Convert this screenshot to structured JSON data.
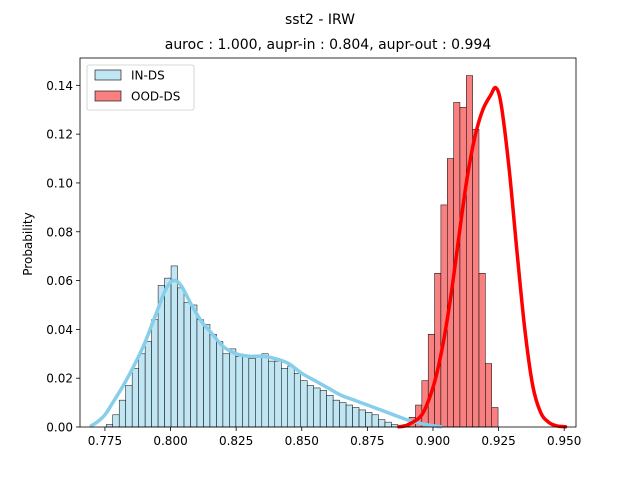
{
  "chart_data": {
    "type": "histogram",
    "title": "sst2 - IRW",
    "subtitle": "auroc : 1.000, aupr-in : 0.804, aupr-out : 0.994",
    "xlabel": "",
    "ylabel": "Probability",
    "xlim": [
      0.7655,
      0.9545
    ],
    "ylim": [
      0,
      0.1512
    ],
    "xticks": [
      {
        "value": 0.775,
        "label": "0.775"
      },
      {
        "value": 0.8,
        "label": "0.800"
      },
      {
        "value": 0.825,
        "label": "0.825"
      },
      {
        "value": 0.85,
        "label": "0.850"
      },
      {
        "value": 0.875,
        "label": "0.875"
      },
      {
        "value": 0.9,
        "label": "0.900"
      },
      {
        "value": 0.925,
        "label": "0.925"
      },
      {
        "value": 0.95,
        "label": "0.950"
      }
    ],
    "yticks": [
      {
        "value": 0.0,
        "label": "0.00"
      },
      {
        "value": 0.02,
        "label": "0.02"
      },
      {
        "value": 0.04,
        "label": "0.04"
      },
      {
        "value": 0.06,
        "label": "0.06"
      },
      {
        "value": 0.08,
        "label": "0.08"
      },
      {
        "value": 0.1,
        "label": "0.10"
      },
      {
        "value": 0.12,
        "label": "0.12"
      },
      {
        "value": 0.14,
        "label": "0.14"
      }
    ],
    "grid": false,
    "legend_position": "top-left",
    "series": [
      {
        "name": "IN-DS",
        "fill": "#c0e5f3",
        "line_color": "#87ceeb",
        "bin_start": 0.7755,
        "bin_width": 0.00247,
        "values": [
          0.001,
          0.005,
          0.011,
          0.017,
          0.024,
          0.03,
          0.035,
          0.044,
          0.058,
          0.061,
          0.066,
          0.057,
          0.051,
          0.05,
          0.044,
          0.042,
          0.038,
          0.035,
          0.03,
          0.032,
          0.029,
          0.029,
          0.028,
          0.029,
          0.03,
          0.027,
          0.027,
          0.024,
          0.025,
          0.022,
          0.019,
          0.017,
          0.016,
          0.015,
          0.013,
          0.011,
          0.01,
          0.009,
          0.008,
          0.007,
          0.006,
          0.005,
          0.003,
          0.002,
          0.001
        ],
        "kde": {
          "x": [
            0.7698,
            0.772,
            0.775,
            0.778,
            0.782,
            0.786,
            0.79,
            0.794,
            0.798,
            0.801,
            0.804,
            0.808,
            0.812,
            0.816,
            0.82,
            0.825,
            0.83,
            0.835,
            0.84,
            0.845,
            0.85,
            0.855,
            0.86,
            0.865,
            0.87,
            0.875,
            0.88,
            0.885,
            0.89,
            0.895,
            0.9,
            0.903
          ],
          "y": [
            0.0005,
            0.002,
            0.005,
            0.01,
            0.017,
            0.025,
            0.034,
            0.045,
            0.056,
            0.06,
            0.058,
            0.05,
            0.043,
            0.038,
            0.033,
            0.03,
            0.029,
            0.029,
            0.028,
            0.026,
            0.022,
            0.019,
            0.016,
            0.013,
            0.011,
            0.009,
            0.007,
            0.005,
            0.003,
            0.0015,
            0.0005,
            0.0001
          ]
        }
      },
      {
        "name": "OOD-DS",
        "fill": "#f88080",
        "line_color": "#ff0000",
        "bin_start": 0.8885,
        "bin_width": 0.00242,
        "values": [
          0.001,
          0.004,
          0.009,
          0.019,
          0.038,
          0.063,
          0.091,
          0.11,
          0.133,
          0.131,
          0.144,
          0.122,
          0.063,
          0.026,
          0.008
        ],
        "kde": {
          "x": [
            0.887,
            0.89,
            0.895,
            0.898,
            0.901,
            0.904,
            0.907,
            0.91,
            0.913,
            0.916,
            0.919,
            0.922,
            0.924,
            0.926,
            0.929,
            0.932,
            0.935,
            0.938,
            0.941,
            0.944,
            0.947,
            0.9505
          ],
          "y": [
            0.0001,
            0.0007,
            0.004,
            0.01,
            0.02,
            0.035,
            0.055,
            0.079,
            0.102,
            0.119,
            0.13,
            0.136,
            0.139,
            0.132,
            0.106,
            0.072,
            0.04,
            0.017,
            0.006,
            0.002,
            0.0005,
            0.0001
          ]
        }
      }
    ]
  }
}
